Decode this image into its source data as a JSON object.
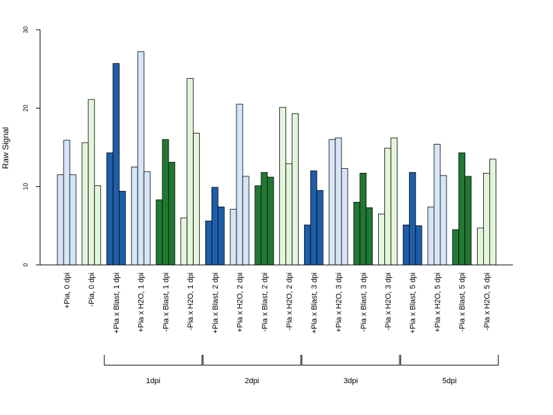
{
  "chart_data": {
    "type": "bar",
    "title": "",
    "xlabel": "",
    "ylabel": "Raw Signal",
    "ylim": [
      0,
      30
    ],
    "yticks": [
      0,
      10,
      20,
      30
    ],
    "grid": false,
    "legend": "none",
    "colors": {
      "light_blue": "#d6e6f7",
      "dark_blue": "#1e5ea8",
      "light_green": "#e3f5db",
      "dark_green": "#227833",
      "axis": "#000000"
    },
    "categories": [
      {
        "label": "+Pia, 0 dpi",
        "values": [
          11.5,
          15.9,
          11.5
        ],
        "color": "light_blue"
      },
      {
        "label": "-Pia, 0 dpi",
        "values": [
          15.6,
          21.1,
          10.1
        ],
        "color": "light_green"
      },
      {
        "label": "+Pia x Blast, 1 dpi",
        "values": [
          14.3,
          25.7,
          9.4
        ],
        "color": "dark_blue"
      },
      {
        "label": "+Pia x H2O, 1 dpi",
        "values": [
          12.5,
          27.2,
          11.9
        ],
        "color": "light_blue"
      },
      {
        "label": "-Pia x Blast, 1 dpi",
        "values": [
          8.3,
          16.0,
          13.1
        ],
        "color": "dark_green"
      },
      {
        "label": "-Pia x H2O, 1 dpi",
        "values": [
          6.0,
          23.8,
          16.8
        ],
        "color": "light_green"
      },
      {
        "label": "+Pia x Blast, 2 dpi",
        "values": [
          5.6,
          9.9,
          7.4
        ],
        "color": "dark_blue"
      },
      {
        "label": "+Pia x H2O, 2 dpi",
        "values": [
          7.1,
          20.5,
          11.3
        ],
        "color": "light_blue"
      },
      {
        "label": "-Pia x Blast, 2 dpi",
        "values": [
          10.1,
          11.8,
          11.2
        ],
        "color": "dark_green"
      },
      {
        "label": "-Pia x H2O, 2 dpi",
        "values": [
          20.1,
          12.9,
          19.3
        ],
        "color": "light_green"
      },
      {
        "label": "+Pia x Blast, 3 dpi",
        "values": [
          5.1,
          12.0,
          9.5
        ],
        "color": "dark_blue"
      },
      {
        "label": "+Pia x H2O, 3 dpi",
        "values": [
          16.0,
          16.2,
          12.3
        ],
        "color": "light_blue"
      },
      {
        "label": "-Pia x Blast, 3 dpi",
        "values": [
          8.0,
          11.7,
          7.3
        ],
        "color": "dark_green"
      },
      {
        "label": "-Pia x H2O, 3 dpi",
        "values": [
          6.5,
          14.9,
          16.2
        ],
        "color": "light_green"
      },
      {
        "label": "+Pia x Blast, 5 dpi",
        "values": [
          5.1,
          11.8,
          5.0
        ],
        "color": "dark_blue"
      },
      {
        "label": "+Pia x H2O, 5 dpi",
        "values": [
          7.4,
          15.4,
          11.4
        ],
        "color": "light_blue"
      },
      {
        "label": "-Pia x Blast, 5 dpi",
        "values": [
          4.5,
          14.3,
          11.3
        ],
        "color": "dark_green"
      },
      {
        "label": "-Pia x H2O, 5 dpi",
        "values": [
          4.7,
          11.7,
          13.5
        ],
        "color": "light_green"
      }
    ],
    "groups": [
      {
        "label": "1dpi",
        "from": 2,
        "to": 5
      },
      {
        "label": "2dpi",
        "from": 6,
        "to": 9
      },
      {
        "label": "3dpi",
        "from": 10,
        "to": 13
      },
      {
        "label": "5dpi",
        "from": 14,
        "to": 17
      }
    ]
  }
}
